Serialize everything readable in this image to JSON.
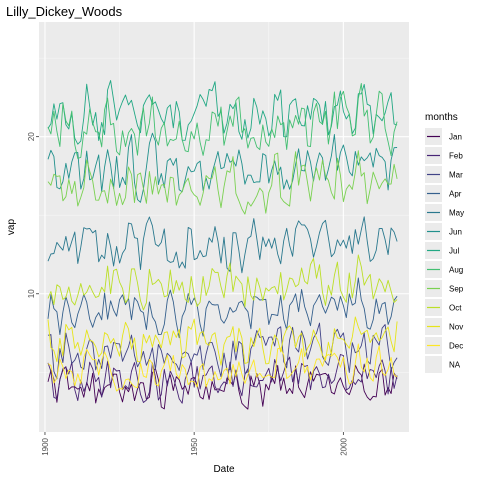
{
  "chart_data": {
    "type": "line",
    "title": "Lilly_Dickey_Woods",
    "xlabel": "Date",
    "ylabel": "vap",
    "xlim": [
      1898,
      2022
    ],
    "ylim": [
      1.2,
      27.3
    ],
    "x_ticks": [
      1900,
      1950,
      2000
    ],
    "y_ticks": [
      10,
      20
    ],
    "grid": true,
    "legend_title": "months",
    "legend_position": "right",
    "series": [
      {
        "name": "Jan",
        "color": "#440154",
        "base": 4.0,
        "amplitude": 1.0
      },
      {
        "name": "Feb",
        "color": "#482576",
        "base": 4.5,
        "amplitude": 1.1
      },
      {
        "name": "Mar",
        "color": "#414487",
        "base": 6.2,
        "amplitude": 1.2
      },
      {
        "name": "Apr",
        "color": "#35608D",
        "base": 8.9,
        "amplitude": 1.3
      },
      {
        "name": "May",
        "color": "#2A788E",
        "base": 13.0,
        "amplitude": 1.4
      },
      {
        "name": "Jun",
        "color": "#21908C",
        "base": 18.0,
        "amplitude": 1.5
      },
      {
        "name": "Jul",
        "color": "#22A884",
        "base": 21.3,
        "amplitude": 1.6
      },
      {
        "name": "Aug",
        "color": "#43BF71",
        "base": 20.7,
        "amplitude": 1.6
      },
      {
        "name": "Sep",
        "color": "#7AD151",
        "base": 16.8,
        "amplitude": 1.4
      },
      {
        "name": "Oct",
        "color": "#BBDF27",
        "base": 10.5,
        "amplitude": 1.2
      },
      {
        "name": "Nov",
        "color": "#E6E419",
        "base": 6.9,
        "amplitude": 1.1
      },
      {
        "name": "Dec",
        "color": "#FDE725",
        "base": 5.1,
        "amplitude": 1.0
      },
      {
        "name": "NA",
        "color": "#7F7F7F",
        "base": null,
        "amplitude": null
      }
    ],
    "years": [
      1901,
      2018
    ]
  }
}
